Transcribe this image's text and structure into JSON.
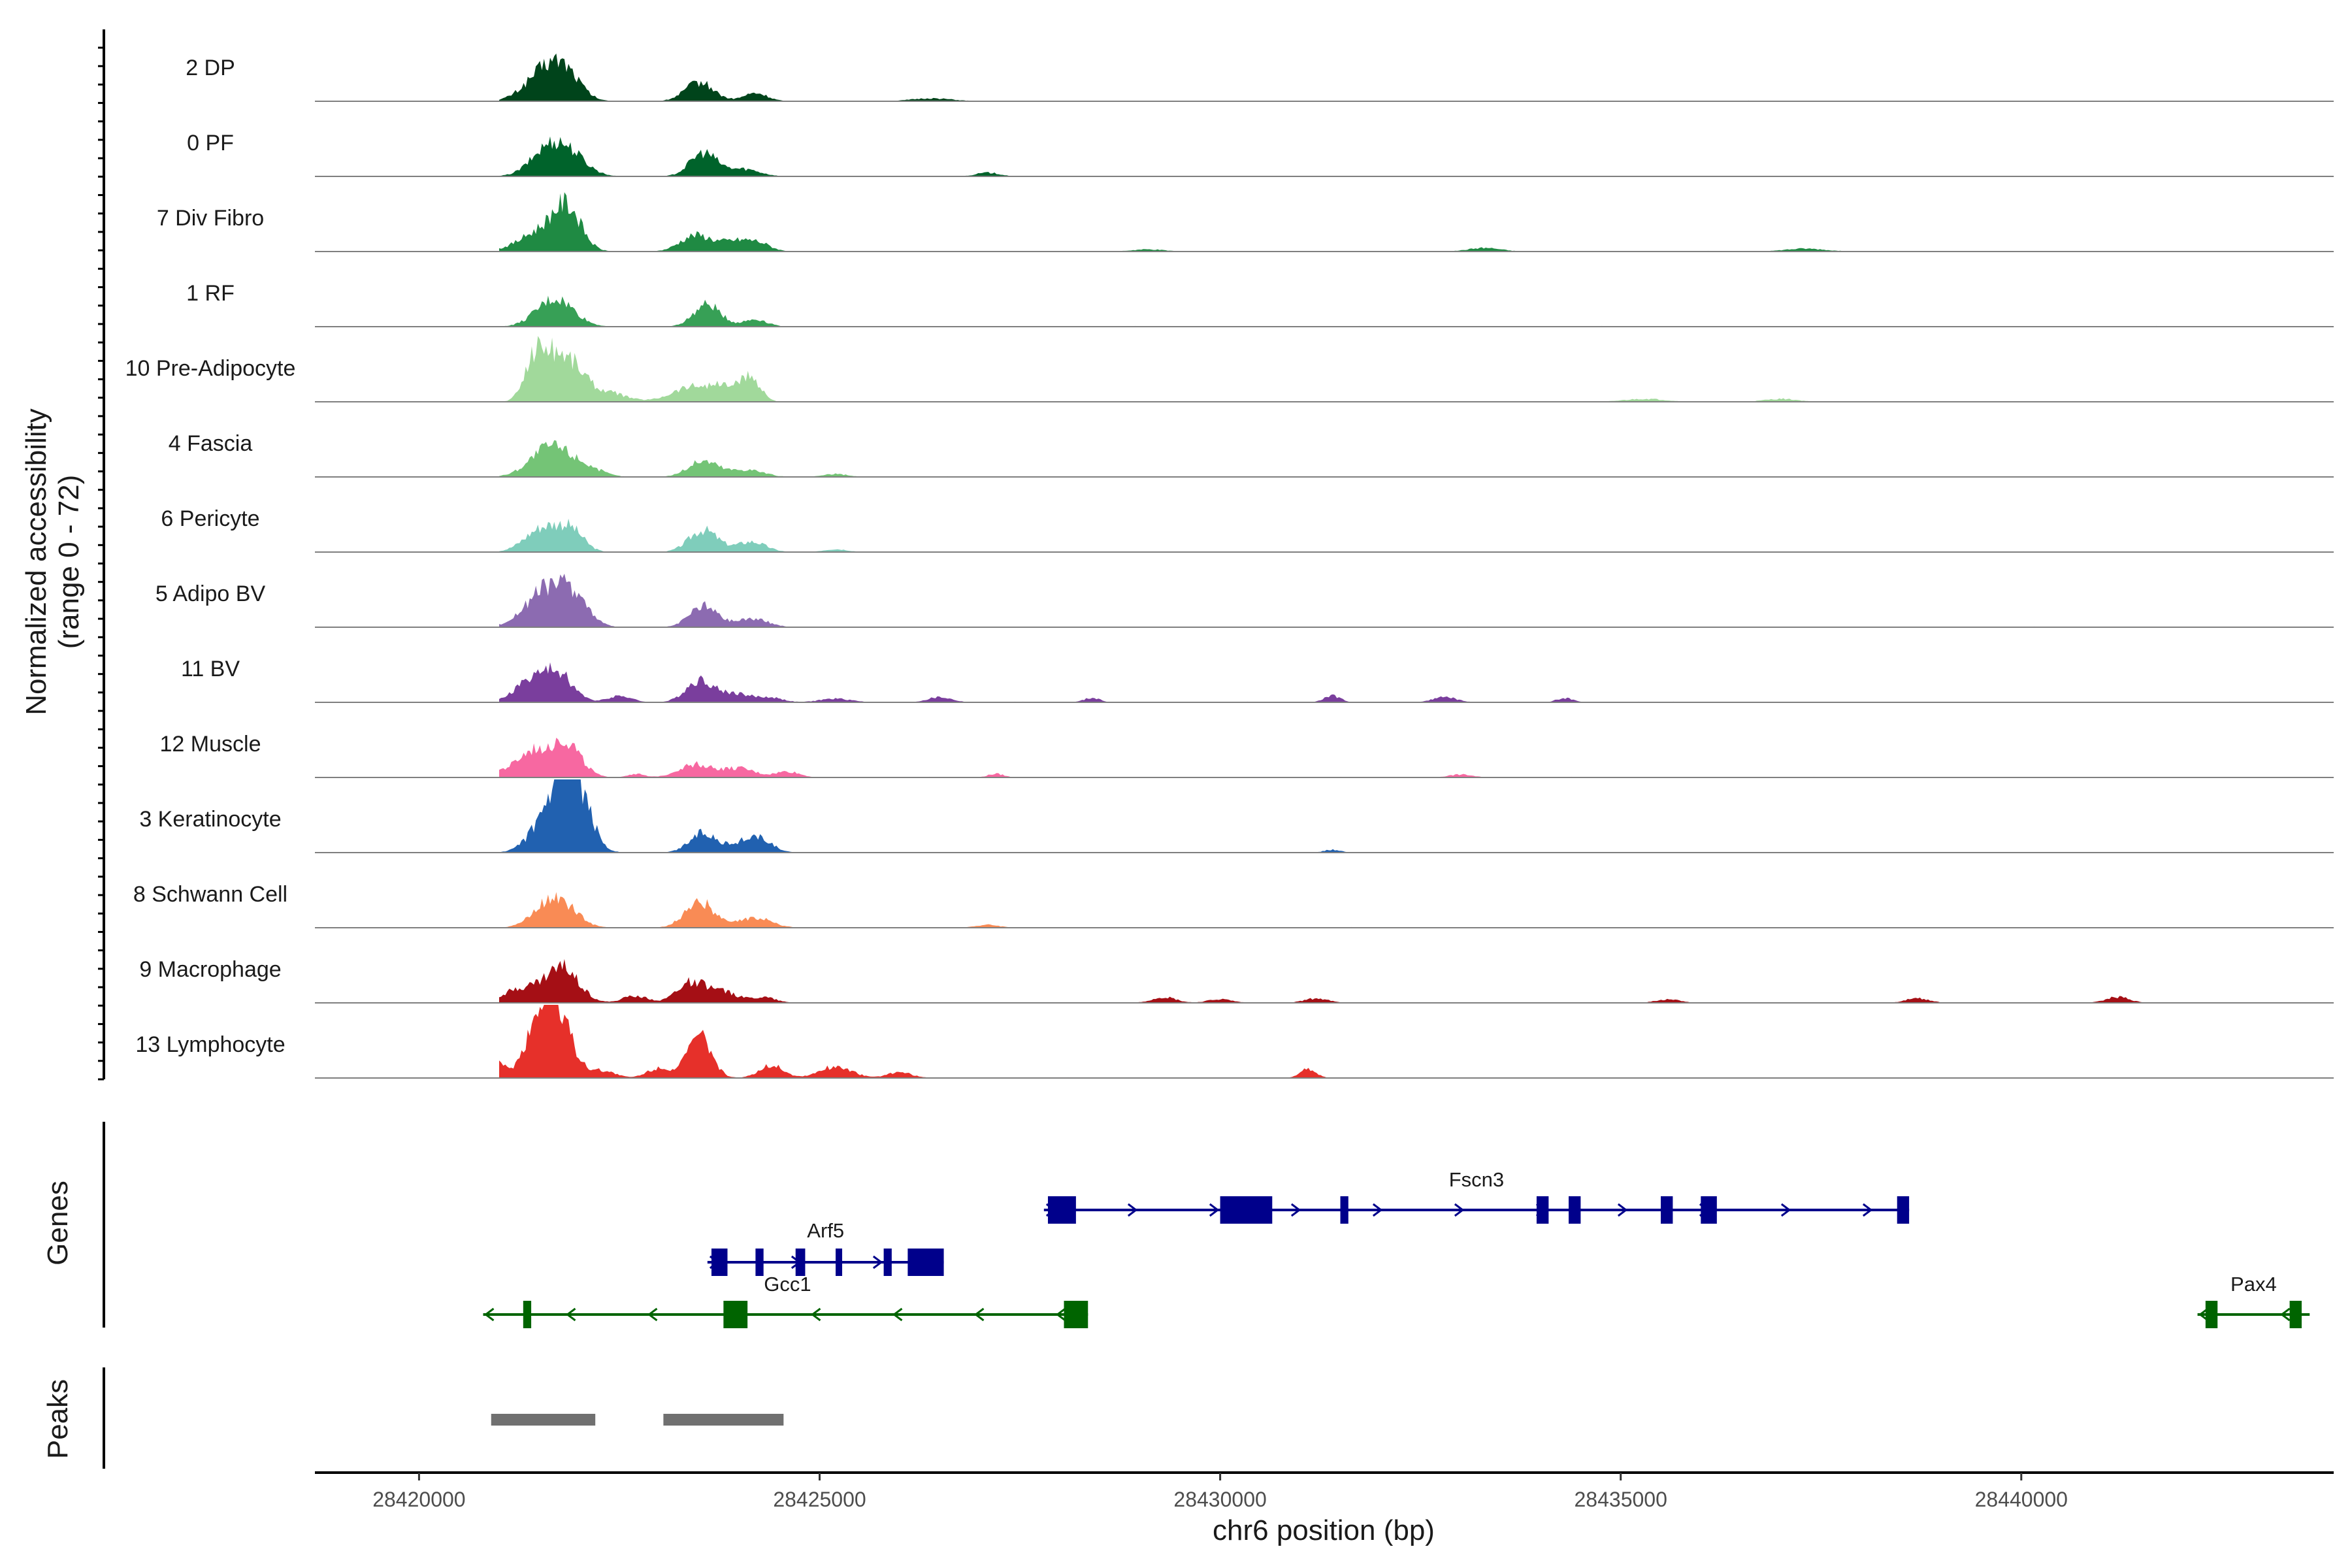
{
  "chart_data": {
    "type": "coverage",
    "title": "",
    "ylabel": "Normalized accessibility",
    "ylabel_range": "(range 0 - 72)",
    "ylim": [
      0,
      72
    ],
    "xlabel": "chr6 position (bp)",
    "xlim": [
      28418700,
      28443900
    ],
    "x_ticks": [
      28420000,
      28425000,
      28430000,
      28435000,
      28440000
    ],
    "x_tick_labels": [
      "28420000",
      "28425000",
      "28430000",
      "28435000",
      "28440000"
    ],
    "tracks": [
      {
        "name": "2 DP",
        "color": "#00441b",
        "peaks": [
          [
            28421600,
            0.44,
            250
          ],
          [
            28421850,
            0.22,
            180
          ],
          [
            28423500,
            0.26,
            180
          ],
          [
            28424200,
            0.11,
            150
          ],
          [
            28426400,
            0.04,
            250
          ]
        ]
      },
      {
        "name": "0 PF",
        "color": "#00632b",
        "peaks": [
          [
            28421650,
            0.42,
            230
          ],
          [
            28421950,
            0.16,
            200
          ],
          [
            28423550,
            0.32,
            170
          ],
          [
            28424050,
            0.1,
            200
          ],
          [
            28427100,
            0.05,
            150
          ]
        ]
      },
      {
        "name": "7 Div Fibro",
        "color": "#1f8a43",
        "peaks": [
          [
            28421550,
            0.28,
            280
          ],
          [
            28421850,
            0.5,
            170
          ],
          [
            28423450,
            0.22,
            190
          ],
          [
            28423950,
            0.14,
            200
          ],
          [
            28424250,
            0.09,
            150
          ],
          [
            28433300,
            0.05,
            200
          ],
          [
            28437300,
            0.04,
            250
          ],
          [
            28429100,
            0.03,
            200
          ]
        ]
      },
      {
        "name": "1 RF",
        "color": "#37a056",
        "peaks": [
          [
            28421700,
            0.38,
            230
          ],
          [
            28423600,
            0.3,
            170
          ],
          [
            28424200,
            0.1,
            150
          ]
        ]
      },
      {
        "name": "10 Pre-Adipocyte",
        "color": "#a1d99b",
        "peaks": [
          [
            28421450,
            0.6,
            130
          ],
          [
            28421700,
            0.52,
            150
          ],
          [
            28421950,
            0.36,
            150
          ],
          [
            28422300,
            0.14,
            250
          ],
          [
            28423400,
            0.2,
            250
          ],
          [
            28423850,
            0.18,
            200
          ],
          [
            28424150,
            0.28,
            120
          ],
          [
            28435300,
            0.04,
            250
          ],
          [
            28437000,
            0.04,
            200
          ]
        ]
      },
      {
        "name": "4 Fascia",
        "color": "#74c476",
        "peaks": [
          [
            28421650,
            0.42,
            250
          ],
          [
            28422100,
            0.1,
            200
          ],
          [
            28423550,
            0.22,
            190
          ],
          [
            28424100,
            0.1,
            200
          ],
          [
            28425200,
            0.04,
            150
          ]
        ]
      },
      {
        "name": "6 Pericyte",
        "color": "#7fcdbb",
        "peaks": [
          [
            28421550,
            0.33,
            220
          ],
          [
            28421900,
            0.26,
            160
          ],
          [
            28423550,
            0.3,
            180
          ],
          [
            28424150,
            0.14,
            180
          ],
          [
            28425200,
            0.04,
            150
          ]
        ]
      },
      {
        "name": "5 Adipo BV",
        "color": "#8c6bb1",
        "peaks": [
          [
            28421600,
            0.52,
            260
          ],
          [
            28421950,
            0.3,
            180
          ],
          [
            28423550,
            0.3,
            170
          ],
          [
            28424150,
            0.12,
            200
          ]
        ]
      },
      {
        "name": "11 BV",
        "color": "#7a3e9d",
        "peaks": [
          [
            28421400,
            0.3,
            200
          ],
          [
            28421750,
            0.36,
            180
          ],
          [
            28422500,
            0.09,
            150
          ],
          [
            28423500,
            0.3,
            170
          ],
          [
            28423950,
            0.12,
            200
          ],
          [
            28424400,
            0.06,
            150
          ],
          [
            28425200,
            0.05,
            200
          ],
          [
            28426500,
            0.07,
            150
          ],
          [
            28428400,
            0.06,
            100
          ],
          [
            28431400,
            0.09,
            100
          ],
          [
            28432800,
            0.07,
            150
          ],
          [
            28434300,
            0.06,
            100
          ]
        ]
      },
      {
        "name": "12 Muscle",
        "color": "#f768a1",
        "peaks": [
          [
            28421450,
            0.36,
            230
          ],
          [
            28421850,
            0.42,
            180
          ],
          [
            28423450,
            0.18,
            210
          ],
          [
            28424000,
            0.12,
            200
          ],
          [
            28424600,
            0.08,
            150
          ],
          [
            28420900,
            0.06,
            150
          ],
          [
            28422700,
            0.05,
            100
          ],
          [
            28427200,
            0.05,
            100
          ],
          [
            28433000,
            0.04,
            150
          ]
        ]
      },
      {
        "name": "3 Keratinocyte",
        "color": "#2161b0",
        "peaks": [
          [
            28421650,
            0.55,
            220
          ],
          [
            28421900,
            0.78,
            160
          ],
          [
            28422100,
            0.25,
            150
          ],
          [
            28423550,
            0.28,
            170
          ],
          [
            28424100,
            0.16,
            180
          ],
          [
            28424300,
            0.1,
            150
          ],
          [
            28431400,
            0.04,
            100
          ]
        ]
      },
      {
        "name": "8 Schwann Cell",
        "color": "#f98b55",
        "peaks": [
          [
            28421700,
            0.42,
            230
          ],
          [
            28423500,
            0.36,
            180
          ],
          [
            28424200,
            0.14,
            200
          ],
          [
            28427100,
            0.04,
            150
          ]
        ]
      },
      {
        "name": "9 Macrophage",
        "color": "#a50f15",
        "peaks": [
          [
            28421300,
            0.2,
            250
          ],
          [
            28421800,
            0.46,
            200
          ],
          [
            28422700,
            0.1,
            150
          ],
          [
            28423400,
            0.28,
            180
          ],
          [
            28423800,
            0.14,
            180
          ],
          [
            28424300,
            0.08,
            150
          ],
          [
            28429300,
            0.08,
            150
          ],
          [
            28430000,
            0.05,
            150
          ],
          [
            28431200,
            0.06,
            150
          ],
          [
            28435600,
            0.05,
            150
          ],
          [
            28438700,
            0.06,
            150
          ],
          [
            28441200,
            0.08,
            150
          ]
        ]
      },
      {
        "name": "13 Lymphocyte",
        "color": "#e6302a",
        "peaks": [
          [
            28420900,
            0.24,
            150
          ],
          [
            28421450,
            0.62,
            150
          ],
          [
            28421650,
            0.9,
            120
          ],
          [
            28421850,
            0.46,
            150
          ],
          [
            28422300,
            0.1,
            150
          ],
          [
            28423000,
            0.14,
            150
          ],
          [
            28423500,
            0.56,
            150
          ],
          [
            28424400,
            0.18,
            150
          ],
          [
            28425200,
            0.16,
            200
          ],
          [
            28426000,
            0.08,
            150
          ],
          [
            28431100,
            0.12,
            100
          ]
        ]
      }
    ],
    "genes": [
      {
        "name": "Fscn3",
        "strand": "+",
        "color": "#00008b",
        "start": 28427800,
        "end": 28438600,
        "exons": [
          [
            28427850,
            28428200
          ],
          [
            28430000,
            28430650
          ],
          [
            28431500,
            28431600
          ],
          [
            28433950,
            28434100
          ],
          [
            28434350,
            28434500
          ],
          [
            28435500,
            28435650
          ],
          [
            28436000,
            28436200
          ],
          [
            28438450,
            28438600
          ]
        ]
      },
      {
        "name": "Arf5",
        "strand": "+",
        "color": "#00008b",
        "start": 28423600,
        "end": 28426550,
        "exons": [
          [
            28423650,
            28423850
          ],
          [
            28424200,
            28424300
          ],
          [
            28424700,
            28424820
          ],
          [
            28425200,
            28425280
          ],
          [
            28425800,
            28425900
          ],
          [
            28426100,
            28426550
          ]
        ]
      },
      {
        "name": "Gcc1",
        "strand": "-",
        "color": "#006400",
        "start": 28420800,
        "end": 28428350,
        "exons": [
          [
            28421300,
            28421400
          ],
          [
            28423800,
            28424100
          ],
          [
            28428050,
            28428350
          ]
        ]
      },
      {
        "name": "Pax4",
        "strand": "-",
        "color": "#006400",
        "start": 28442200,
        "end": 28443600,
        "exons": [
          [
            28442300,
            28442450
          ],
          [
            28443350,
            28443500
          ]
        ]
      }
    ],
    "peaks": [
      [
        28420900,
        28422200
      ],
      [
        28423050,
        28424550
      ]
    ],
    "genes_label": "Genes",
    "peaks_label": "Peaks"
  }
}
